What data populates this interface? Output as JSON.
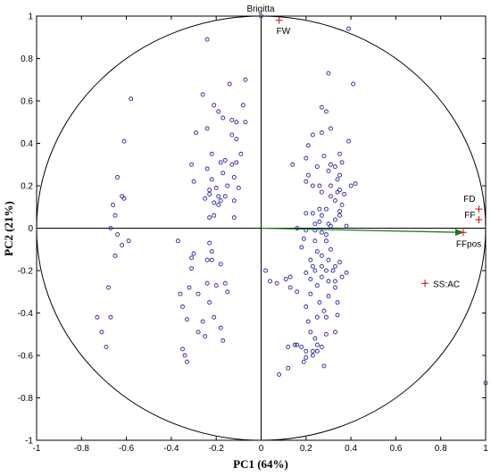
{
  "chart_data": {
    "type": "scatter",
    "title": "Brigitta",
    "xlabel": "PC1 (64%)",
    "ylabel": "PC2 (21%)",
    "xlim": [
      -1,
      1
    ],
    "ylim": [
      -1,
      1
    ],
    "x_ticks": [
      "-1",
      "-0.8",
      "-0.6",
      "-0.4",
      "-0.2",
      "0",
      "0.2",
      "0.4",
      "0.6",
      "0.8",
      "1"
    ],
    "y_ticks": [
      "-1",
      "-0.8",
      "-0.6",
      "-0.4",
      "-0.2",
      "0",
      "0.2",
      "0.4",
      "0.6",
      "0.8",
      "1"
    ],
    "grid": false,
    "unit_circle": true,
    "colors": {
      "points": "#2a2aa8",
      "variables": "#c0202a",
      "arrow": "#1e7a1e"
    },
    "series": [
      {
        "marker": "circle",
        "points": [
          [
            -0.58,
            0.61
          ],
          [
            -0.61,
            0.41
          ],
          [
            -0.64,
            0.24
          ],
          [
            -0.62,
            0.15
          ],
          [
            -0.61,
            0.14
          ],
          [
            -0.66,
            0.11
          ],
          [
            -0.65,
            0.06
          ],
          [
            -0.67,
            0.0
          ],
          [
            -0.64,
            -0.03
          ],
          [
            -0.62,
            -0.08
          ],
          [
            -0.59,
            -0.06
          ],
          [
            -0.65,
            -0.13
          ],
          [
            -0.68,
            -0.28
          ],
          [
            -0.73,
            -0.42
          ],
          [
            -0.71,
            -0.49
          ],
          [
            -0.67,
            -0.42
          ],
          [
            -0.69,
            -0.56
          ],
          [
            -0.24,
            0.89
          ],
          [
            -0.26,
            0.63
          ],
          [
            -0.21,
            0.58
          ],
          [
            -0.19,
            0.55
          ],
          [
            -0.14,
            0.68
          ],
          [
            -0.17,
            0.52
          ],
          [
            -0.13,
            0.51
          ],
          [
            -0.07,
            0.5
          ],
          [
            -0.08,
            0.58
          ],
          [
            -0.07,
            0.7
          ],
          [
            -0.11,
            0.5
          ],
          [
            -0.24,
            0.47
          ],
          [
            -0.29,
            0.45
          ],
          [
            -0.13,
            0.44
          ],
          [
            -0.11,
            0.42
          ],
          [
            -0.22,
            0.35
          ],
          [
            -0.16,
            0.32
          ],
          [
            -0.09,
            0.35
          ],
          [
            -0.18,
            0.31
          ],
          [
            -0.13,
            0.3
          ],
          [
            -0.24,
            0.28
          ],
          [
            -0.17,
            0.26
          ],
          [
            -0.22,
            0.23
          ],
          [
            -0.31,
            0.3
          ],
          [
            -0.3,
            0.22
          ],
          [
            -0.2,
            0.19
          ],
          [
            -0.15,
            0.2
          ],
          [
            -0.21,
            0.12
          ],
          [
            -0.23,
            0.18
          ],
          [
            -0.18,
            0.13
          ],
          [
            -0.16,
            0.15
          ],
          [
            -0.25,
            0.14
          ],
          [
            -0.23,
            0.16
          ],
          [
            -0.19,
            0.11
          ],
          [
            -0.12,
            0.13
          ],
          [
            -0.1,
            0.19
          ],
          [
            -0.12,
            0.24
          ],
          [
            -0.11,
            0.31
          ],
          [
            -0.21,
            0.06
          ],
          [
            -0.23,
            0.05
          ],
          [
            -0.12,
            0.05
          ],
          [
            -0.19,
            0.15
          ],
          [
            -0.37,
            -0.06
          ],
          [
            -0.3,
            -0.12
          ],
          [
            -0.31,
            -0.14
          ],
          [
            -0.31,
            -0.19
          ],
          [
            -0.23,
            -0.07
          ],
          [
            -0.22,
            -0.11
          ],
          [
            -0.24,
            -0.15
          ],
          [
            -0.22,
            -0.15
          ],
          [
            -0.32,
            -0.28
          ],
          [
            -0.28,
            -0.31
          ],
          [
            -0.36,
            -0.31
          ],
          [
            -0.24,
            -0.26
          ],
          [
            -0.2,
            -0.27
          ],
          [
            -0.18,
            -0.17
          ],
          [
            -0.23,
            -0.35
          ],
          [
            -0.16,
            -0.26
          ],
          [
            -0.15,
            -0.3
          ],
          [
            -0.35,
            -0.37
          ],
          [
            -0.33,
            -0.43
          ],
          [
            -0.26,
            -0.44
          ],
          [
            -0.21,
            -0.42
          ],
          [
            -0.18,
            -0.47
          ],
          [
            -0.28,
            -0.49
          ],
          [
            -0.35,
            -0.57
          ],
          [
            -0.34,
            -0.6
          ],
          [
            -0.33,
            -0.63
          ],
          [
            -0.25,
            -0.51
          ],
          [
            -0.17,
            -0.53
          ],
          [
            0.0,
            1.0
          ],
          [
            0.39,
            0.94
          ],
          [
            0.3,
            0.73
          ],
          [
            0.41,
            0.68
          ],
          [
            0.27,
            0.57
          ],
          [
            0.29,
            0.55
          ],
          [
            0.27,
            0.45
          ],
          [
            0.23,
            0.44
          ],
          [
            0.31,
            0.47
          ],
          [
            0.21,
            0.39
          ],
          [
            0.39,
            0.41
          ],
          [
            0.35,
            0.35
          ],
          [
            0.28,
            0.34
          ],
          [
            0.2,
            0.33
          ],
          [
            0.31,
            0.3
          ],
          [
            0.36,
            0.31
          ],
          [
            0.33,
            0.29
          ],
          [
            0.14,
            0.3
          ],
          [
            0.25,
            0.29
          ],
          [
            0.3,
            0.27
          ],
          [
            0.35,
            0.25
          ],
          [
            0.34,
            0.23
          ],
          [
            0.21,
            0.25
          ],
          [
            0.2,
            0.22
          ],
          [
            0.4,
            0.2
          ],
          [
            0.23,
            0.2
          ],
          [
            0.26,
            0.2
          ],
          [
            0.31,
            0.2
          ],
          [
            0.42,
            0.21
          ],
          [
            0.35,
            0.18
          ],
          [
            0.27,
            0.17
          ],
          [
            0.34,
            0.17
          ],
          [
            0.37,
            0.16
          ],
          [
            0.31,
            0.15
          ],
          [
            0.33,
            0.13
          ],
          [
            0.36,
            0.11
          ],
          [
            0.26,
            0.09
          ],
          [
            0.29,
            0.09
          ],
          [
            0.2,
            0.07
          ],
          [
            0.23,
            0.07
          ],
          [
            0.27,
            0.06
          ],
          [
            0.35,
            0.08
          ],
          [
            0.33,
            0.04
          ],
          [
            0.26,
            0.03
          ],
          [
            0.24,
            0.02
          ],
          [
            0.3,
            0.02
          ],
          [
            0.35,
            0.06
          ],
          [
            0.31,
            0.01
          ],
          [
            0.38,
            0.01
          ],
          [
            0.16,
            0.0
          ],
          [
            0.2,
            -0.01
          ],
          [
            0.24,
            -0.01
          ],
          [
            0.27,
            -0.02
          ],
          [
            0.29,
            -0.03
          ],
          [
            0.19,
            -0.05
          ],
          [
            0.24,
            -0.06
          ],
          [
            0.29,
            -0.06
          ],
          [
            0.18,
            -0.09
          ],
          [
            0.25,
            -0.11
          ],
          [
            0.31,
            -0.1
          ],
          [
            0.27,
            -0.13
          ],
          [
            0.22,
            -0.15
          ],
          [
            0.3,
            -0.15
          ],
          [
            0.35,
            -0.16
          ],
          [
            0.23,
            -0.18
          ],
          [
            0.27,
            -0.18
          ],
          [
            0.33,
            -0.18
          ],
          [
            0.24,
            -0.2
          ],
          [
            0.29,
            -0.2
          ],
          [
            0.32,
            -0.2
          ],
          [
            0.38,
            -0.21
          ],
          [
            0.2,
            -0.21
          ],
          [
            0.13,
            -0.23
          ],
          [
            0.02,
            -0.2
          ],
          [
            0.04,
            -0.25
          ],
          [
            0.13,
            -0.28
          ],
          [
            0.16,
            -0.3
          ],
          [
            0.27,
            -0.23
          ],
          [
            0.22,
            -0.24
          ],
          [
            0.3,
            -0.25
          ],
          [
            0.33,
            -0.25
          ],
          [
            0.36,
            -0.23
          ],
          [
            0.25,
            -0.27
          ],
          [
            0.33,
            -0.28
          ],
          [
            0.22,
            -0.31
          ],
          [
            0.3,
            -0.32
          ],
          [
            0.26,
            -0.35
          ],
          [
            0.34,
            -0.35
          ],
          [
            0.2,
            -0.37
          ],
          [
            0.28,
            -0.39
          ],
          [
            0.34,
            -0.41
          ],
          [
            0.29,
            -0.42
          ],
          [
            0.25,
            -0.42
          ],
          [
            0.21,
            -0.44
          ],
          [
            0.22,
            -0.49
          ],
          [
            0.33,
            -0.49
          ],
          [
            0.29,
            -0.5
          ],
          [
            0.24,
            -0.52
          ],
          [
            0.16,
            -0.55
          ],
          [
            0.18,
            -0.56
          ],
          [
            0.23,
            -0.58
          ],
          [
            0.25,
            -0.58
          ],
          [
            0.2,
            -0.58
          ],
          [
            0.27,
            -0.56
          ],
          [
            0.12,
            -0.56
          ],
          [
            0.2,
            -0.61
          ],
          [
            0.15,
            -0.55
          ],
          [
            0.25,
            -0.55
          ],
          [
            0.23,
            -0.6
          ],
          [
            0.19,
            -0.63
          ],
          [
            0.12,
            -0.66
          ],
          [
            0.28,
            -0.65
          ],
          [
            0.08,
            -0.69
          ],
          [
            0.07,
            -0.26
          ],
          [
            0.11,
            -0.24
          ],
          [
            1.0,
            -0.73
          ]
        ]
      },
      {
        "marker": "plus",
        "labels": [
          "FW",
          "FD",
          "FF",
          "FFpos",
          "SS:AC"
        ],
        "points": [
          [
            0.08,
            0.98
          ],
          [
            0.97,
            0.09
          ],
          [
            0.97,
            0.04
          ],
          [
            0.9,
            -0.02
          ],
          [
            0.73,
            -0.26
          ]
        ]
      }
    ],
    "arrow": {
      "from": [
        0,
        0
      ],
      "to": [
        0.9,
        -0.02
      ]
    }
  }
}
